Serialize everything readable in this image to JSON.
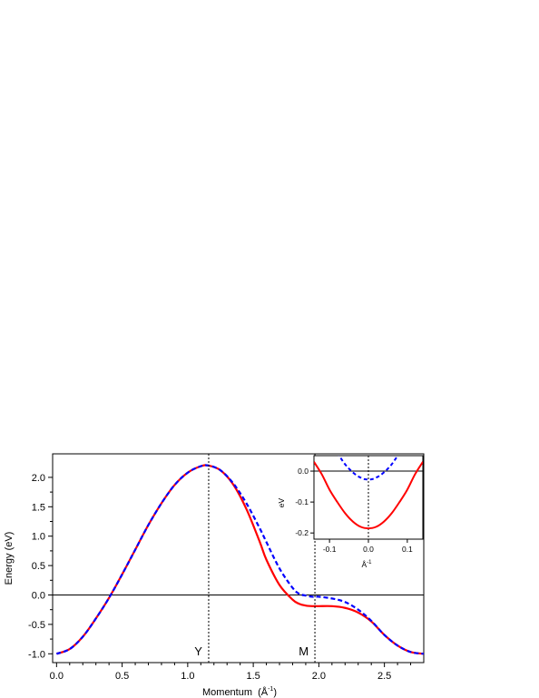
{
  "chart_data": [
    {
      "type": "line",
      "title": "",
      "xlabel": "Momentum",
      "xlabel_unit": "(Å",
      "xlabel_unit_exp": "-1",
      "xlabel_unit_close": ")",
      "ylabel": "Energy  (eV)",
      "xlim": [
        -0.03,
        2.8
      ],
      "ylim": [
        -1.15,
        2.4
      ],
      "xticks": [
        0.0,
        0.5,
        1.0,
        1.5,
        2.0,
        2.5
      ],
      "xtick_labels": [
        "0.0",
        "0.5",
        "1.0",
        "1.5",
        "2.0",
        "2.5"
      ],
      "yticks": [
        -1.0,
        -0.5,
        0.0,
        0.5,
        1.0,
        1.5,
        2.0
      ],
      "ytick_labels": [
        "-1.0",
        "-0.5",
        "0.0",
        "0.5",
        "1.0",
        "1.5",
        "2.0"
      ],
      "zero_line": 0.0,
      "markers": [
        {
          "label": "Y",
          "x": 1.16
        },
        {
          "label": "M",
          "x": 1.97
        }
      ],
      "series": [
        {
          "style": "solid",
          "color": "#ff0000",
          "x": [
            0.0,
            0.1,
            0.2,
            0.3,
            0.4,
            0.5,
            0.6,
            0.7,
            0.8,
            0.9,
            1.0,
            1.1,
            1.16,
            1.25,
            1.35,
            1.45,
            1.55,
            1.6,
            1.7,
            1.8,
            1.85,
            1.9,
            1.95,
            2.0,
            2.1,
            2.2,
            2.3,
            2.4,
            2.5,
            2.6,
            2.7,
            2.8
          ],
          "y": [
            -1.0,
            -0.92,
            -0.71,
            -0.4,
            -0.05,
            0.35,
            0.77,
            1.19,
            1.56,
            1.87,
            2.08,
            2.19,
            2.2,
            2.12,
            1.87,
            1.45,
            0.9,
            0.6,
            0.17,
            -0.08,
            -0.15,
            -0.18,
            -0.19,
            -0.19,
            -0.19,
            -0.22,
            -0.3,
            -0.45,
            -0.68,
            -0.86,
            -0.97,
            -1.0
          ]
        },
        {
          "style": "dashed",
          "color": "#0000ff",
          "x": [
            0.0,
            0.1,
            0.2,
            0.3,
            0.4,
            0.5,
            0.6,
            0.7,
            0.8,
            0.9,
            1.0,
            1.1,
            1.16,
            1.25,
            1.35,
            1.45,
            1.55,
            1.6,
            1.7,
            1.8,
            1.85,
            1.9,
            1.95,
            2.0,
            2.1,
            2.2,
            2.3,
            2.4,
            2.5,
            2.6,
            2.7,
            2.8
          ],
          "y": [
            -1.0,
            -0.92,
            -0.71,
            -0.4,
            -0.05,
            0.35,
            0.77,
            1.19,
            1.56,
            1.87,
            2.08,
            2.19,
            2.2,
            2.12,
            1.89,
            1.55,
            1.13,
            0.9,
            0.45,
            0.12,
            0.02,
            -0.01,
            -0.03,
            -0.03,
            -0.06,
            -0.12,
            -0.25,
            -0.44,
            -0.68,
            -0.86,
            -0.97,
            -1.0
          ]
        }
      ]
    },
    {
      "type": "line",
      "title": "",
      "xlabel": "Å",
      "xlabel_exp": "-1",
      "ylabel": "eV",
      "xlim": [
        -0.14,
        0.14
      ],
      "ylim": [
        -0.22,
        0.05
      ],
      "xticks": [
        -0.1,
        0.0,
        0.1
      ],
      "xtick_labels": [
        "-0.1",
        "0.0",
        "0.1"
      ],
      "yticks": [
        0.0,
        -0.1,
        -0.2
      ],
      "ytick_labels": [
        "0.0",
        "-0.1",
        "-0.2"
      ],
      "zero_line": 0.0,
      "vline": 0.0,
      "series": [
        {
          "style": "solid",
          "color": "#ff0000",
          "x": [
            -0.14,
            -0.12,
            -0.1,
            -0.08,
            -0.06,
            -0.04,
            -0.02,
            0.0,
            0.02,
            0.04,
            0.06,
            0.08,
            0.1,
            0.12,
            0.14
          ],
          "y": [
            0.03,
            -0.01,
            -0.06,
            -0.1,
            -0.136,
            -0.163,
            -0.18,
            -0.185,
            -0.18,
            -0.163,
            -0.136,
            -0.1,
            -0.06,
            -0.01,
            0.03
          ]
        },
        {
          "style": "dashed",
          "color": "#0000ff",
          "x": [
            -0.08,
            -0.07,
            -0.06,
            -0.05,
            -0.04,
            -0.03,
            -0.02,
            -0.01,
            0.0,
            0.01,
            0.02,
            0.03,
            0.04,
            0.05,
            0.06,
            0.07,
            0.08
          ],
          "y": [
            0.06,
            0.04,
            0.022,
            0.008,
            -0.004,
            -0.014,
            -0.021,
            -0.026,
            -0.027,
            -0.026,
            -0.021,
            -0.014,
            -0.004,
            0.008,
            0.022,
            0.04,
            0.06
          ]
        }
      ]
    }
  ]
}
